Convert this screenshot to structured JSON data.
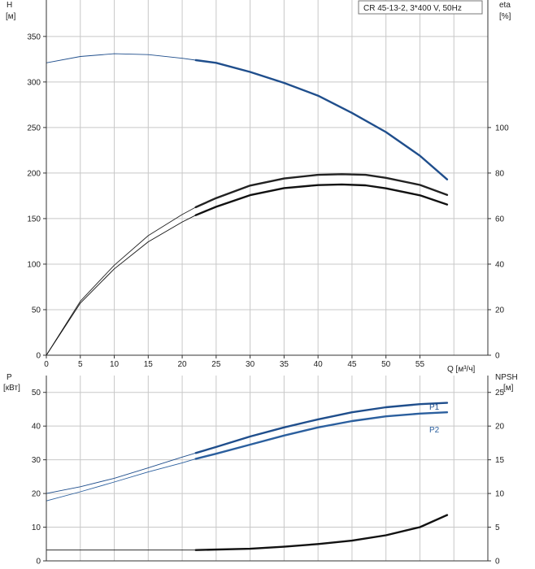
{
  "chart_data": [
    {
      "type": "line",
      "legend_text": "CR 45-13-2, 3*400 V, 50Hz",
      "left_axis": {
        "label": "H",
        "unit": "[м]",
        "ylim": [
          0,
          390
        ],
        "ticks": [
          0,
          50,
          100,
          150,
          200,
          250,
          300,
          350
        ]
      },
      "right_axis": {
        "label": "eta",
        "unit": "[%]",
        "ylim": [
          0,
          156
        ],
        "ticks": [
          0,
          20,
          40,
          60,
          80,
          100
        ]
      },
      "x_axis": {
        "label": "Q [м³/ч]",
        "xlim": [
          0,
          65
        ],
        "ticks": [
          0,
          5,
          10,
          15,
          20,
          25,
          30,
          35,
          40,
          45,
          50,
          55
        ]
      },
      "grid": true,
      "series": [
        {
          "axis": "left",
          "color": "#1f4e8c",
          "x": [
            0,
            5,
            10,
            15,
            20,
            22,
            25,
            30,
            35,
            40,
            45,
            50,
            55,
            59
          ],
          "y": [
            321,
            328,
            331,
            330,
            326,
            324,
            321,
            311,
            299,
            285,
            266,
            245,
            219,
            193
          ],
          "start_bold_x": 22
        },
        {
          "axis": "right",
          "color": "#222222",
          "x": [
            0,
            5,
            10,
            15,
            20,
            22,
            25,
            30,
            35,
            40,
            43.5,
            47,
            50,
            55,
            59
          ],
          "y": [
            0,
            23.7,
            39.5,
            52.5,
            61.8,
            65,
            69,
            74.5,
            77.6,
            79.2,
            79.5,
            79.2,
            77.9,
            74.8,
            70.4
          ],
          "start_bold_x": 22
        },
        {
          "axis": "right",
          "color": "#111111",
          "x": [
            0,
            5,
            10,
            15,
            20,
            22,
            25,
            30,
            35,
            40,
            43.5,
            47,
            50,
            55,
            59
          ],
          "y": [
            0,
            22.9,
            37.9,
            49.8,
            58.5,
            61.5,
            65.2,
            70.3,
            73.4,
            74.7,
            75,
            74.6,
            73.3,
            70.2,
            66.2
          ],
          "start_bold_x": 22
        }
      ]
    },
    {
      "type": "line",
      "left_axis": {
        "label": "P",
        "unit": "[кВт]",
        "ylim": [
          0,
          55
        ],
        "ticks": [
          0,
          10,
          20,
          30,
          40,
          50
        ]
      },
      "right_axis": {
        "label": "NPSH",
        "unit": "[м]",
        "ylim": [
          0,
          27.5
        ],
        "ticks": [
          0,
          5,
          10,
          15,
          20,
          25
        ]
      },
      "x_axis": {
        "xlim": [
          0,
          65
        ]
      },
      "grid": true,
      "series": [
        {
          "name": "P1",
          "axis": "left",
          "color": "#1f4e8c",
          "x": [
            0,
            5,
            10,
            15,
            20,
            22,
            25,
            30,
            35,
            40,
            45,
            50,
            55,
            59
          ],
          "y": [
            20,
            22,
            24.5,
            27.6,
            30.8,
            32,
            33.8,
            36.9,
            39.6,
            42,
            44.1,
            45.6,
            46.5,
            46.9
          ],
          "start_bold_x": 22
        },
        {
          "name": "P2",
          "axis": "left",
          "color": "#2b5f9e",
          "x": [
            0,
            5,
            10,
            15,
            20,
            22,
            25,
            30,
            35,
            40,
            45,
            50,
            55,
            59
          ],
          "y": [
            17.8,
            20.5,
            23.4,
            26.4,
            29.1,
            30.3,
            31.8,
            34.5,
            37.2,
            39.6,
            41.5,
            42.9,
            43.7,
            44.1
          ],
          "start_bold_x": 22
        },
        {
          "axis": "right",
          "color": "#111111",
          "x": [
            0,
            22,
            30,
            35,
            40,
            45,
            50,
            55,
            59
          ],
          "y": [
            1.6,
            1.6,
            1.8,
            2.1,
            2.5,
            3.0,
            3.8,
            5.0,
            6.8
          ],
          "start_bold_x": 22
        }
      ]
    }
  ]
}
